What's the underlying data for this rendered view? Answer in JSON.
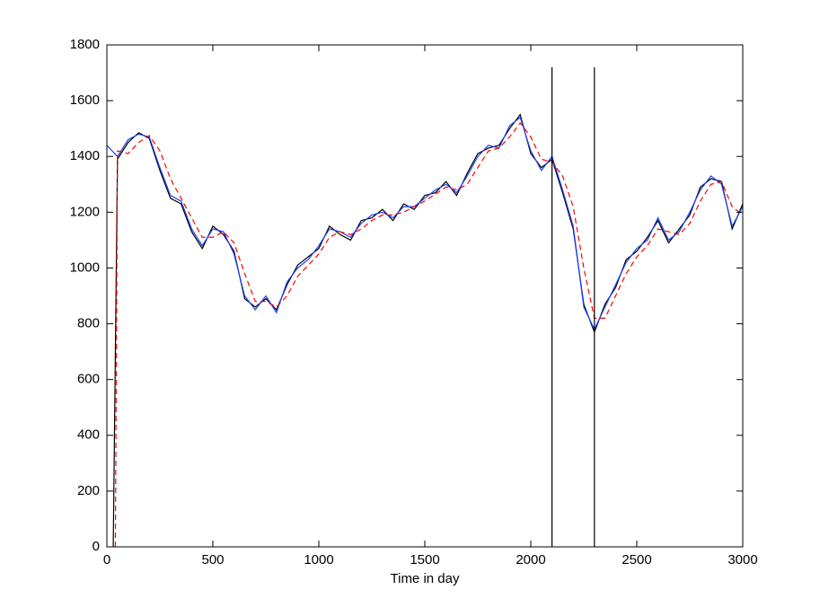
{
  "chart_data": {
    "type": "line",
    "xlabel": "Time in day",
    "xlim": [
      0,
      3000
    ],
    "xticks": [
      0,
      500,
      1000,
      1500,
      2000,
      2500,
      3000
    ],
    "ylim": [
      0,
      1800
    ],
    "yticks": [
      0,
      200,
      400,
      600,
      800,
      1000,
      1200,
      1400,
      1600,
      1800
    ],
    "grid": false,
    "series": [
      {
        "color": "#000000",
        "dash": "solid",
        "x": [
          30,
          50,
          100,
          150,
          200,
          250,
          300,
          350,
          400,
          450,
          500,
          550,
          600,
          650,
          700,
          750,
          800,
          850,
          900,
          950,
          1000,
          1050,
          1100,
          1150,
          1200,
          1250,
          1300,
          1350,
          1400,
          1450,
          1500,
          1550,
          1600,
          1650,
          1700,
          1750,
          1800,
          1850,
          1900,
          1950,
          2000,
          2050,
          2100,
          2150,
          2200,
          2250,
          2300,
          2350,
          2400,
          2450,
          2500,
          2550,
          2600,
          2650,
          2700,
          2750,
          2800,
          2850,
          2900,
          2950,
          3000
        ],
        "values": [
          0,
          1390,
          1450,
          1485,
          1465,
          1350,
          1250,
          1230,
          1130,
          1070,
          1150,
          1120,
          1060,
          890,
          860,
          890,
          850,
          940,
          1010,
          1040,
          1070,
          1150,
          1120,
          1100,
          1170,
          1180,
          1210,
          1170,
          1230,
          1210,
          1260,
          1270,
          1310,
          1260,
          1340,
          1410,
          1430,
          1440,
          1500,
          1550,
          1410,
          1360,
          1390,
          1270,
          1140,
          870,
          770,
          870,
          930,
          1030,
          1060,
          1110,
          1170,
          1090,
          1140,
          1190,
          1290,
          1320,
          1310,
          1140,
          1230
        ]
      },
      {
        "color": "#1f3fff",
        "dash": "solid",
        "x": [
          0,
          50,
          100,
          150,
          200,
          250,
          300,
          350,
          400,
          450,
          500,
          550,
          600,
          650,
          700,
          750,
          800,
          850,
          900,
          950,
          1000,
          1050,
          1100,
          1150,
          1200,
          1250,
          1300,
          1350,
          1400,
          1450,
          1500,
          1550,
          1600,
          1650,
          1700,
          1750,
          1800,
          1850,
          1900,
          1950,
          2000,
          2050,
          2100,
          2150,
          2200,
          2250,
          2300,
          2350,
          2400,
          2450,
          2500,
          2550,
          2600,
          2650,
          2700,
          2750,
          2800,
          2850,
          2900,
          2950,
          3000
        ],
        "values": [
          1440,
          1400,
          1460,
          1480,
          1470,
          1360,
          1260,
          1240,
          1140,
          1080,
          1140,
          1130,
          1050,
          900,
          850,
          900,
          840,
          950,
          1000,
          1030,
          1080,
          1140,
          1130,
          1110,
          1160,
          1190,
          1200,
          1180,
          1220,
          1220,
          1250,
          1280,
          1300,
          1270,
          1330,
          1400,
          1440,
          1430,
          1510,
          1540,
          1420,
          1350,
          1400,
          1280,
          1150,
          860,
          780,
          860,
          940,
          1020,
          1070,
          1100,
          1180,
          1100,
          1130,
          1200,
          1280,
          1330,
          1300,
          1150,
          1220
        ]
      },
      {
        "color": "#ff0000",
        "dash": "dashed",
        "x": [
          40,
          50,
          100,
          150,
          200,
          250,
          300,
          350,
          400,
          450,
          500,
          550,
          600,
          650,
          700,
          750,
          800,
          850,
          900,
          950,
          1000,
          1050,
          1100,
          1150,
          1200,
          1250,
          1300,
          1350,
          1400,
          1450,
          1500,
          1550,
          1600,
          1650,
          1700,
          1750,
          1800,
          1850,
          1900,
          1950,
          2000,
          2050,
          2100,
          2150,
          2200,
          2250,
          2300,
          2350,
          2400,
          2450,
          2500,
          2550,
          2600,
          2650,
          2700,
          2750,
          2800,
          2850,
          2900,
          2950,
          3000
        ],
        "values": [
          0,
          1420,
          1410,
          1450,
          1475,
          1420,
          1320,
          1250,
          1180,
          1110,
          1110,
          1130,
          1090,
          980,
          880,
          880,
          860,
          900,
          970,
          1010,
          1050,
          1110,
          1130,
          1120,
          1140,
          1170,
          1190,
          1190,
          1200,
          1220,
          1240,
          1265,
          1290,
          1280,
          1300,
          1360,
          1420,
          1430,
          1470,
          1520,
          1470,
          1390,
          1380,
          1330,
          1220,
          1000,
          820,
          820,
          900,
          980,
          1040,
          1080,
          1140,
          1130,
          1120,
          1160,
          1240,
          1300,
          1310,
          1220,
          1190
        ]
      },
      {
        "color": "#000000",
        "dash": "solid",
        "x": [
          2100,
          2100
        ],
        "values": [
          0,
          1720
        ]
      },
      {
        "color": "#000000",
        "dash": "solid",
        "x": [
          2300,
          2300
        ],
        "values": [
          0,
          1720
        ]
      }
    ]
  }
}
